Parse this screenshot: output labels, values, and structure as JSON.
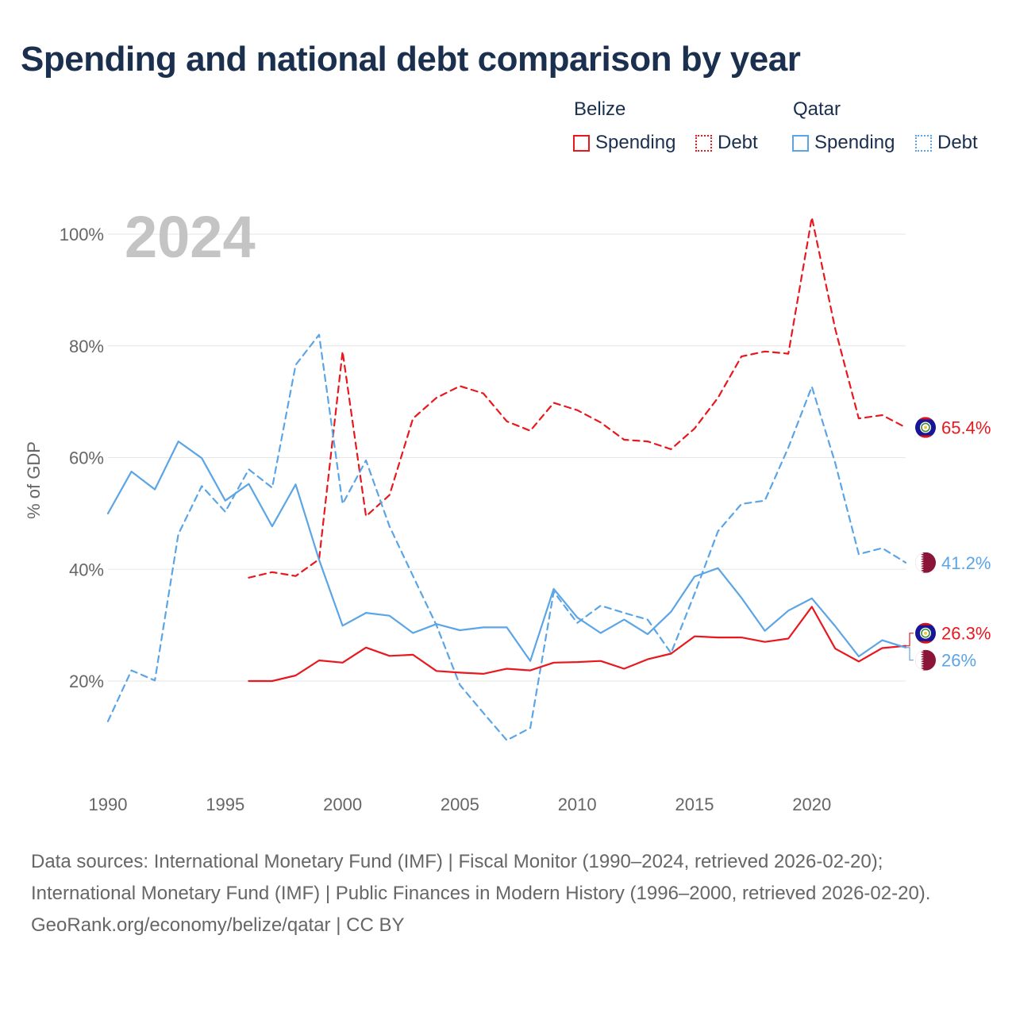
{
  "title": "Spending and national debt comparison by year",
  "legend": {
    "groups": [
      {
        "country": "Belize",
        "items": [
          {
            "label": "Spending",
            "color": "#e8181e",
            "style": "solid"
          },
          {
            "label": "Debt",
            "color": "#e8181e",
            "style": "dotted"
          }
        ]
      },
      {
        "country": "Qatar",
        "items": [
          {
            "label": "Spending",
            "color": "#5ba5e6",
            "style": "solid"
          },
          {
            "label": "Debt",
            "color": "#5ba5e6",
            "style": "dotted"
          }
        ]
      }
    ]
  },
  "chart_data": {
    "type": "line",
    "year_label": "2024",
    "ylabel": "% of GDP",
    "xlim": [
      1990,
      2024
    ],
    "ylim": [
      5,
      105
    ],
    "x_ticks": [
      1990,
      1995,
      2000,
      2005,
      2010,
      2015,
      2020
    ],
    "y_ticks": [
      20,
      40,
      60,
      80,
      100
    ],
    "y_tick_labels": [
      "20%",
      "40%",
      "60%",
      "80%",
      "100%"
    ],
    "series": [
      {
        "name": "Belize Debt",
        "country": "Belize",
        "color": "#e8181e",
        "dash": "dashed",
        "x": [
          1996,
          1997,
          1998,
          1999,
          2000,
          2001,
          2002,
          2003,
          2004,
          2005,
          2006,
          2007,
          2008,
          2009,
          2010,
          2011,
          2012,
          2013,
          2014,
          2015,
          2016,
          2017,
          2018,
          2019,
          2020,
          2021,
          2022,
          2023,
          2024
        ],
        "values": [
          38.5,
          39.5,
          38.8,
          41.8,
          79,
          49.5,
          53.3,
          67,
          70.7,
          72.8,
          71.5,
          66.5,
          64.8,
          69.8,
          68.5,
          66.3,
          63.2,
          62.9,
          61.5,
          65.2,
          70.7,
          78.1,
          79.0,
          78.6,
          103,
          83,
          67,
          67.6,
          65.4
        ],
        "end_label": "65.4%",
        "flag": "belize"
      },
      {
        "name": "Qatar Debt",
        "country": "Qatar",
        "color": "#5ba5e6",
        "dash": "dashed",
        "x": [
          1990,
          1991,
          1992,
          1993,
          1994,
          1995,
          1996,
          1997,
          1998,
          1999,
          2000,
          2001,
          2002,
          2003,
          2004,
          2005,
          2006,
          2007,
          2008,
          2009,
          2010,
          2011,
          2012,
          2013,
          2014,
          2015,
          2016,
          2017,
          2018,
          2019,
          2020,
          2021,
          2022,
          2023,
          2024
        ],
        "values": [
          12.8,
          21.9,
          20.1,
          46.3,
          54.9,
          50.3,
          57.9,
          54.6,
          76.6,
          82,
          51.7,
          59.5,
          47.7,
          38.8,
          30,
          19.3,
          14.3,
          9.4,
          11.6,
          36,
          30.4,
          33.5,
          32.2,
          31,
          25,
          35.6,
          46.8,
          51.7,
          52.3,
          61.8,
          72.7,
          59,
          42.7,
          43.8,
          41.2
        ],
        "end_label": "41.2%",
        "flag": "qatar"
      },
      {
        "name": "Belize Spending",
        "country": "Belize",
        "color": "#e8181e",
        "dash": "solid",
        "x": [
          1996,
          1997,
          1998,
          1999,
          2000,
          2001,
          2002,
          2003,
          2004,
          2005,
          2006,
          2007,
          2008,
          2009,
          2010,
          2011,
          2012,
          2013,
          2014,
          2015,
          2016,
          2017,
          2018,
          2019,
          2020,
          2021,
          2022,
          2023,
          2024
        ],
        "values": [
          20,
          20,
          21,
          23.7,
          23.3,
          26,
          24.5,
          24.7,
          21.8,
          21.5,
          21.3,
          22.2,
          21.9,
          23.3,
          23.4,
          23.6,
          22.2,
          23.9,
          24.9,
          28,
          27.8,
          27.8,
          27,
          27.6,
          33.3,
          25.8,
          23.5,
          25.9,
          26.3
        ],
        "end_label": "26.3%",
        "flag": "belize"
      },
      {
        "name": "Qatar Spending",
        "country": "Qatar",
        "color": "#5ba5e6",
        "dash": "solid",
        "x": [
          1990,
          1991,
          1992,
          1993,
          1994,
          1995,
          1996,
          1997,
          1998,
          1999,
          2000,
          2001,
          2002,
          2003,
          2004,
          2005,
          2006,
          2007,
          2008,
          2009,
          2010,
          2011,
          2012,
          2013,
          2014,
          2015,
          2016,
          2017,
          2018,
          2019,
          2020,
          2021,
          2022,
          2023,
          2024
        ],
        "values": [
          50,
          57.5,
          54.3,
          62.9,
          59.9,
          52.3,
          55.3,
          47.7,
          55.2,
          41.7,
          29.9,
          32.2,
          31.7,
          28.6,
          30.2,
          29.1,
          29.6,
          29.6,
          23.6,
          36.5,
          31.4,
          28.6,
          31,
          28.4,
          32.4,
          38.7,
          40.2,
          34.9,
          29,
          32.6,
          34.8,
          29.8,
          24.4,
          27.3,
          26
        ],
        "end_label": "26%",
        "flag": "qatar"
      }
    ]
  },
  "footer": {
    "sources": "Data sources: International Monetary Fund (IMF) | Fiscal Monitor (1990–2024, retrieved 2026-02-20); International Monetary Fund (IMF) | Public Finances in Modern History (1996–2000, retrieved 2026-02-20).",
    "credit": "GeoRank.org/economy/belize/qatar | CC BY"
  }
}
